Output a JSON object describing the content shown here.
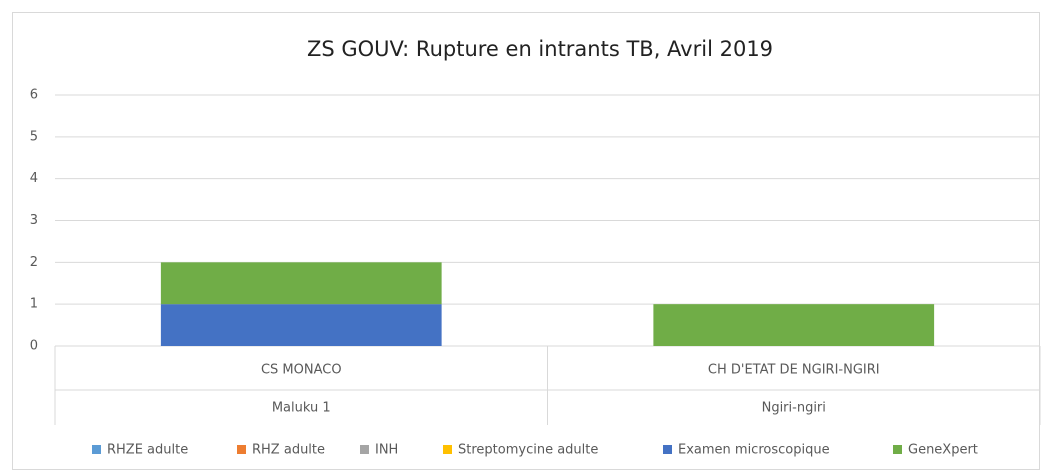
{
  "chart_data": {
    "type": "bar",
    "stacked": true,
    "title": "ZS GOUV: Rupture en intrants TB, Avril 2019",
    "categories": [
      "CS MONACO",
      "CH D'ETAT DE NGIRI-NGIRI"
    ],
    "category_groups": [
      "Maluku 1",
      "Ngiri-ngiri"
    ],
    "series": [
      {
        "name": "RHZE adulte",
        "color": "#5b9bd5",
        "values": [
          0,
          0
        ]
      },
      {
        "name": "RHZ adulte",
        "color": "#ed7d31",
        "values": [
          0,
          0
        ]
      },
      {
        "name": "INH",
        "color": "#a5a5a5",
        "values": [
          0,
          0
        ]
      },
      {
        "name": "Streptomycine adulte",
        "color": "#ffc000",
        "values": [
          0,
          0
        ]
      },
      {
        "name": "Examen microscopique",
        "color": "#4472c4",
        "values": [
          1,
          0
        ]
      },
      {
        "name": "GeneXpert",
        "color": "#70ad47",
        "values": [
          1,
          1
        ]
      }
    ],
    "ylim": [
      0,
      6
    ],
    "yticks": [
      0,
      1,
      2,
      3,
      4,
      5,
      6
    ],
    "grid": true,
    "legend": "bottom"
  }
}
